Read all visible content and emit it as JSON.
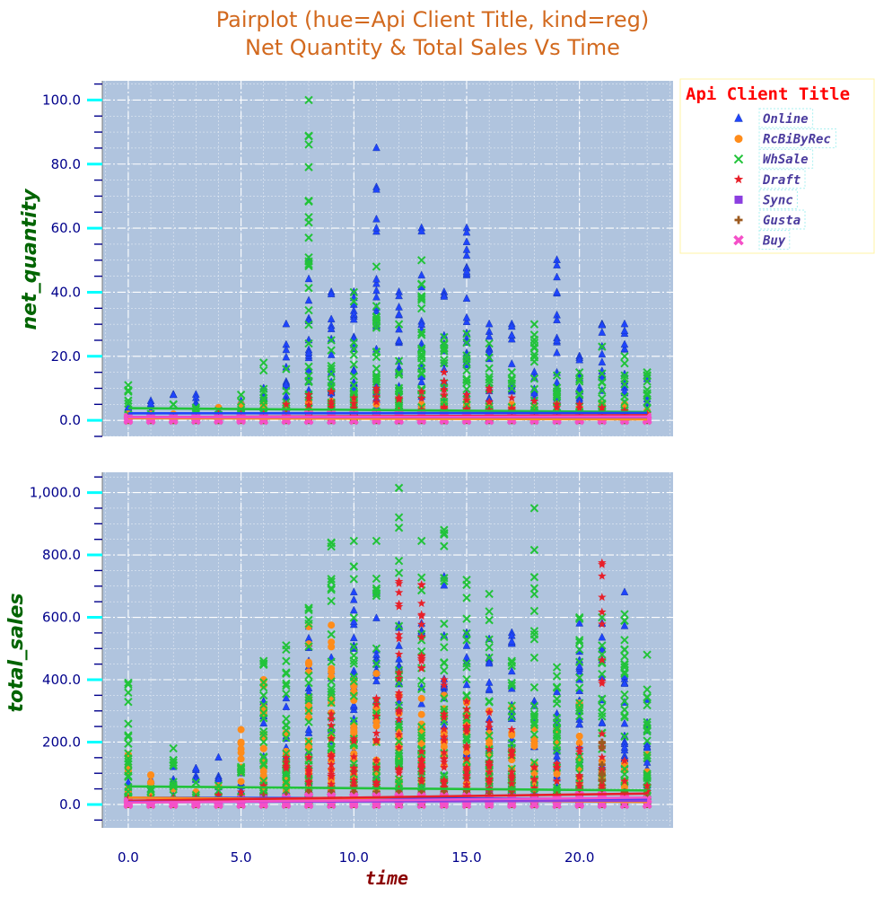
{
  "chart_data": {
    "type": "scatter",
    "title_lines": [
      "Pairplot (hue=Api Client Title, kind=reg)",
      "Net Quantity & Total Sales Vs Time"
    ],
    "xlabel": "time",
    "x_ticks": [
      "0.0",
      "5.0",
      "10.0",
      "15.0",
      "20.0"
    ],
    "xlim": [
      -1.15,
      24.15
    ],
    "legend": {
      "title": "Api Client Title",
      "placement": "right-outside-top",
      "entries": [
        {
          "name": "Online",
          "marker": "triangle",
          "color": "#1f45fc"
        },
        {
          "name": "RcBiByRec",
          "marker": "circle",
          "color": "#ff8c1a"
        },
        {
          "name": "WhSale",
          "marker": "x",
          "color": "#22c33a"
        },
        {
          "name": "Draft",
          "marker": "star",
          "color": "#e8202a"
        },
        {
          "name": "Sync",
          "marker": "square",
          "color": "#8b3ee0"
        },
        {
          "name": "Gusta",
          "marker": "plus",
          "color": "#9c5a1f"
        },
        {
          "name": "Buy",
          "marker": "x-filled",
          "color": "#f550c8"
        }
      ]
    },
    "colors": {
      "plot_background": "#b0c4de",
      "major_tick": "#00ffff",
      "minor_tick": "#00008b"
    },
    "panels": [
      {
        "ylabel": "net_quantity",
        "ylim": [
          -5,
          106
        ],
        "y_ticks": [
          "0.0",
          "20.0",
          "40.0",
          "60.0",
          "80.0",
          "100.0"
        ],
        "series_max": [
          {
            "name": "Online",
            "values": [
              4,
              6,
              8,
              8,
              3,
              6,
              10,
              30,
              50,
              40,
              40,
              85,
              40,
              60,
              40,
              60,
              30,
              30,
              15,
              50,
              20,
              30,
              30,
              14
            ]
          },
          {
            "name": "WhSale",
            "values": [
              11,
              2,
              5,
              4,
              3,
              8,
              18,
              16,
              100,
              25,
              40,
              48,
              30,
              50,
              26,
              27,
              24,
              15,
              30,
              14,
              15,
              23,
              20,
              15
            ]
          },
          {
            "name": "RcBiByRec",
            "values": [
              2,
              2,
              2,
              3,
              4,
              5,
              5,
              5,
              6,
              6,
              6,
              5,
              5,
              5,
              5,
              6,
              5,
              5,
              4,
              5,
              4,
              5,
              5,
              3
            ]
          },
          {
            "name": "Draft",
            "values": [
              1,
              1,
              1,
              1,
              2,
              2,
              2,
              5,
              8,
              9,
              7,
              10,
              7,
              9,
              15,
              8,
              10,
              7,
              6,
              5,
              5,
              4,
              3,
              2
            ]
          },
          {
            "name": "Sync",
            "values": [
              1,
              1,
              1,
              1,
              1,
              1,
              1,
              2,
              2,
              2,
              2,
              2,
              2,
              2,
              2,
              2,
              2,
              2,
              1,
              1,
              1,
              1,
              1,
              1
            ]
          },
          {
            "name": "Gusta",
            "values": [
              1,
              1,
              1,
              1,
              1,
              1,
              1,
              2,
              2,
              2,
              2,
              2,
              2,
              2,
              2,
              2,
              2,
              1,
              1,
              1,
              1,
              2,
              1,
              1
            ]
          },
          {
            "name": "Buy",
            "values": [
              1,
              1,
              1,
              1,
              1,
              1,
              1,
              1,
              2,
              2,
              2,
              2,
              2,
              2,
              2,
              2,
              2,
              1,
              1,
              1,
              1,
              1,
              1,
              1
            ]
          }
        ],
        "regression": [
          {
            "name": "WhSale",
            "y": [
              3.8,
              2.6
            ]
          },
          {
            "name": "Online",
            "y": [
              2.2,
              2.3
            ]
          },
          {
            "name": "RcBiByRec",
            "y": [
              0.7,
              0.3
            ]
          },
          {
            "name": "Draft",
            "y": [
              1.0,
              1.6
            ]
          },
          {
            "name": "Sync",
            "y": [
              1.0,
              1.0
            ]
          },
          {
            "name": "Buy",
            "y": [
              1.0,
              1.2
            ]
          }
        ]
      },
      {
        "ylabel": "total_sales",
        "ylim": [
          -75,
          1065
        ],
        "y_ticks": [
          "0.0",
          "200.0",
          "400.0",
          "600.0",
          "800.0",
          "1,000.0"
        ],
        "series_max": [
          {
            "name": "Online",
            "values": [
              70,
              80,
              120,
              115,
              150,
              100,
              330,
              340,
              570,
              470,
              680,
              680,
              575,
              580,
              730,
              550,
              530,
              550,
              330,
              360,
              580,
              580,
              680,
              335
            ]
          },
          {
            "name": "WhSale",
            "values": [
              390,
              50,
              180,
              70,
              60,
              120,
              460,
              510,
              630,
              840,
              845,
              845,
              1015,
              845,
              880,
              720,
              675,
              460,
              950,
              440,
              600,
              600,
              610,
              480
            ]
          },
          {
            "name": "RcBiByRec",
            "values": [
              160,
              95,
              50,
              40,
              60,
              240,
              400,
              230,
              570,
              575,
              400,
              420,
              350,
              340,
              350,
              330,
              300,
              310,
              250,
              240,
              325,
              140,
              130,
              160
            ]
          },
          {
            "name": "Draft",
            "values": [
              20,
              20,
              20,
              20,
              30,
              40,
              60,
              150,
              150,
              290,
              210,
              340,
              715,
              705,
              400,
              330,
              295,
              240,
              120,
              130,
              180,
              775,
              140,
              60
            ]
          },
          {
            "name": "Sync",
            "values": [
              10,
              10,
              10,
              10,
              15,
              15,
              20,
              25,
              30,
              30,
              30,
              30,
              30,
              30,
              30,
              30,
              30,
              25,
              25,
              20,
              20,
              20,
              15,
              15
            ]
          },
          {
            "name": "Gusta",
            "values": [
              10,
              10,
              10,
              10,
              15,
              20,
              25,
              30,
              40,
              40,
              40,
              40,
              40,
              40,
              40,
              40,
              35,
              30,
              30,
              30,
              30,
              200,
              40,
              20
            ]
          },
          {
            "name": "Buy",
            "values": [
              10,
              10,
              10,
              10,
              10,
              15,
              15,
              20,
              25,
              25,
              25,
              25,
              25,
              25,
              25,
              25,
              20,
              20,
              20,
              20,
              30,
              30,
              20,
              15
            ]
          }
        ],
        "regression": [
          {
            "name": "WhSale",
            "y": [
              58,
              45
            ]
          },
          {
            "name": "Online",
            "y": [
              22,
              18
            ]
          },
          {
            "name": "RcBiByRec",
            "y": [
              22,
              8
            ]
          },
          {
            "name": "Draft",
            "y": [
              12,
              35
            ]
          },
          {
            "name": "Sync",
            "y": [
              8,
              12
            ]
          },
          {
            "name": "Buy",
            "y": [
              6,
              22
            ]
          }
        ]
      }
    ]
  }
}
